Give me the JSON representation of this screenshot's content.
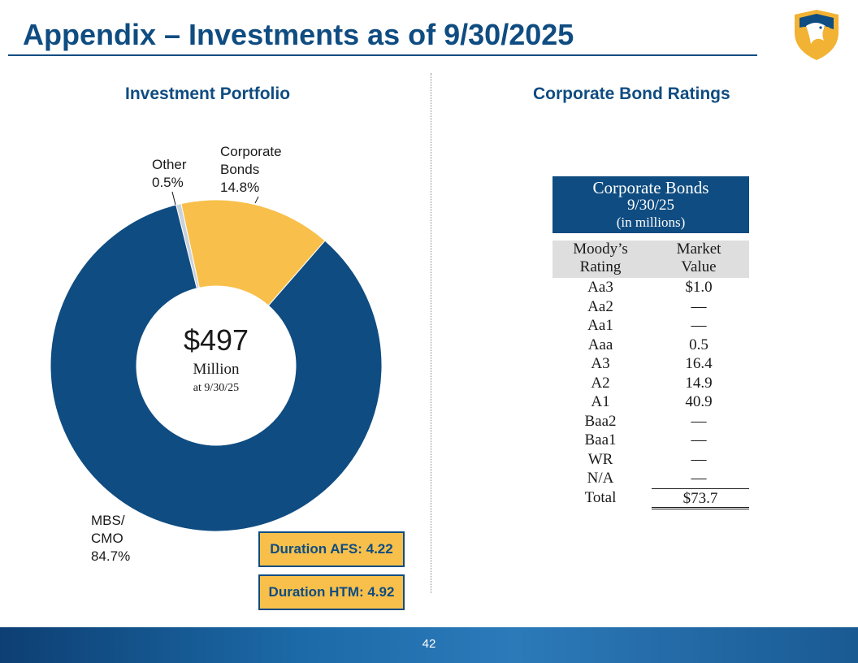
{
  "header": {
    "title": "Appendix – Investments as of 9/30/2025"
  },
  "colors": {
    "brand_blue": "#0f4c81",
    "gold": "#f8c04b",
    "other_gray": "#c9d1db"
  },
  "left_panel": {
    "heading": "Investment Portfolio",
    "center_amount": "$497",
    "center_unit": "Million",
    "center_date": "at 9/30/25",
    "duration_afs": "Duration AFS: 4.22",
    "duration_htm": "Duration HTM: 4.92"
  },
  "chart_data": {
    "type": "pie",
    "variant": "donut",
    "title": "Investment Portfolio",
    "slices": [
      {
        "name": "Other",
        "value": 0.5,
        "label_lines": [
          "Other",
          "0.5%"
        ],
        "color": "#c9d1db"
      },
      {
        "name": "Corporate Bonds",
        "value": 14.8,
        "label_lines": [
          "Corporate",
          "Bonds",
          "14.8%"
        ],
        "color": "#f8c04b"
      },
      {
        "name": "MBS/ CMO",
        "value": 84.7,
        "label_lines": [
          "MBS/",
          "CMO",
          "84.7%"
        ],
        "color": "#0f4c81"
      }
    ],
    "center_text": [
      "$497",
      "Million",
      "at 9/30/25"
    ]
  },
  "right_panel": {
    "heading": "Corporate Bond Ratings",
    "table": {
      "title_line1": "Corporate Bonds",
      "title_line2": "9/30/25",
      "title_line3": "(in millions)",
      "col1_header_line1": "Moody’s",
      "col1_header_line2": "Rating",
      "col2_header_line1": "Market",
      "col2_header_line2": "Value",
      "rows": [
        {
          "rating": "Aa3",
          "value": "$1.0"
        },
        {
          "rating": "Aa2",
          "value": "—"
        },
        {
          "rating": "Aa1",
          "value": "—"
        },
        {
          "rating": "Aaa",
          "value": "0.5"
        },
        {
          "rating": "A3",
          "value": "16.4"
        },
        {
          "rating": "A2",
          "value": "14.9"
        },
        {
          "rating": "A1",
          "value": "40.9"
        },
        {
          "rating": "Baa2",
          "value": "—"
        },
        {
          "rating": "Baa1",
          "value": "—"
        },
        {
          "rating": "WR",
          "value": "—"
        },
        {
          "rating": "N/A",
          "value": "—"
        }
      ],
      "total_label": "Total",
      "total_value": "$73.7"
    }
  },
  "footer": {
    "page_number": "42"
  }
}
